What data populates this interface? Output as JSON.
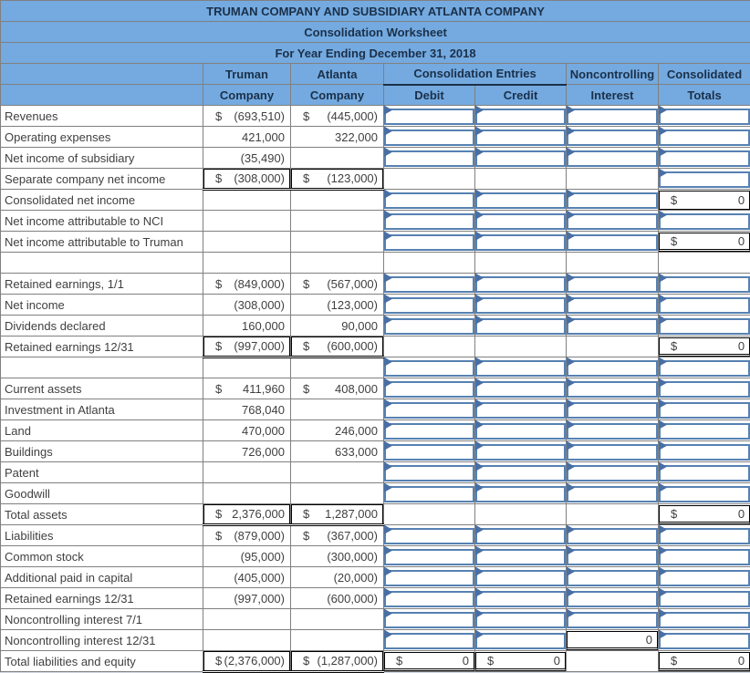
{
  "title": [
    "TRUMAN COMPANY AND SUBSIDIARY ATLANTA COMPANY",
    "Consolidation Worksheet",
    "For Year Ending December 31, 2018"
  ],
  "headers": {
    "truman": [
      "Truman",
      "Company"
    ],
    "atlanta": [
      "Atlanta",
      "Company"
    ],
    "entries": "Consolidation Entries",
    "debit": "Debit",
    "credit": "Credit",
    "nci": [
      "Noncontrolling",
      "Interest"
    ],
    "totals": [
      "Consolidated",
      "Totals"
    ]
  },
  "colors": {
    "header_bg": "#74AAE0",
    "header_text": "#1B3049",
    "grid": "#808080",
    "text": "#3F3F3F",
    "input_border": "#5681B2",
    "input_flag": "#476FA5",
    "calc_border": "#000000",
    "page_bg": "#D4DAE4"
  },
  "rows": [
    {
      "label": "Revenues",
      "truman": {
        "cur": "$",
        "val": "(693,510)"
      },
      "atlanta": {
        "cur": "$",
        "val": "(445,000)"
      },
      "debit": {
        "t": "input"
      },
      "credit": {
        "t": "input"
      },
      "nci": {
        "t": "input"
      },
      "totals": {
        "t": "input"
      }
    },
    {
      "label": "Operating expenses",
      "truman": {
        "val": "421,000"
      },
      "atlanta": {
        "val": "322,000"
      },
      "debit": {
        "t": "input"
      },
      "credit": {
        "t": "input"
      },
      "nci": {
        "t": "input"
      },
      "totals": {
        "t": "input"
      }
    },
    {
      "label": "Net income of subsidiary",
      "truman": {
        "val": "(35,490)"
      },
      "atlanta": null,
      "debit": {
        "t": "input"
      },
      "credit": {
        "t": "input"
      },
      "nci": {
        "t": "input"
      },
      "totals": {
        "t": "input"
      }
    },
    {
      "label": "Separate company net income",
      "box": true,
      "truman": {
        "cur": "$",
        "val": "(308,000)"
      },
      "atlanta": {
        "cur": "$",
        "val": "(123,000)"
      },
      "debit": {
        "t": "plain"
      },
      "credit": {
        "t": "plain"
      },
      "nci": {
        "t": "plain"
      },
      "totals": {
        "t": "input"
      }
    },
    {
      "label": "Consolidated net income",
      "truman": null,
      "atlanta": null,
      "debit": {
        "t": "input"
      },
      "credit": {
        "t": "input"
      },
      "nci": {
        "t": "input"
      },
      "totals": {
        "t": "calc",
        "cur": "$",
        "val": "0",
        "u": "single"
      }
    },
    {
      "label": "Net income attributable to NCI",
      "truman": null,
      "atlanta": null,
      "debit": {
        "t": "input"
      },
      "credit": {
        "t": "input"
      },
      "nci": {
        "t": "input"
      },
      "totals": {
        "t": "input"
      }
    },
    {
      "label": "Net income attributable to Truman",
      "truman": null,
      "atlanta": null,
      "debit": {
        "t": "input"
      },
      "credit": {
        "t": "input"
      },
      "nci": {
        "t": "input"
      },
      "totals": {
        "t": "calc",
        "cur": "$",
        "val": "0",
        "u": "double"
      }
    },
    {
      "label": "",
      "truman": null,
      "atlanta": null,
      "debit": {
        "t": "plain"
      },
      "credit": {
        "t": "plain"
      },
      "nci": {
        "t": "plain"
      },
      "totals": {
        "t": "plain"
      }
    },
    {
      "label": "Retained earnings, 1/1",
      "truman": {
        "cur": "$",
        "val": "(849,000)"
      },
      "atlanta": {
        "cur": "$",
        "val": "(567,000)"
      },
      "debit": {
        "t": "input"
      },
      "credit": {
        "t": "input"
      },
      "nci": {
        "t": "input"
      },
      "totals": {
        "t": "input"
      }
    },
    {
      "label": "Net income",
      "truman": {
        "val": "(308,000)"
      },
      "atlanta": {
        "val": "(123,000)"
      },
      "debit": {
        "t": "input"
      },
      "credit": {
        "t": "input"
      },
      "nci": {
        "t": "input"
      },
      "totals": {
        "t": "input"
      }
    },
    {
      "label": "Dividends declared",
      "truman": {
        "val": "160,000"
      },
      "atlanta": {
        "val": "90,000"
      },
      "debit": {
        "t": "input"
      },
      "credit": {
        "t": "input"
      },
      "nci": {
        "t": "input"
      },
      "totals": {
        "t": "input"
      }
    },
    {
      "label": "Retained earnings 12/31",
      "box": true,
      "truman": {
        "cur": "$",
        "val": "(997,000)"
      },
      "atlanta": {
        "cur": "$",
        "val": "(600,000)"
      },
      "debit": {
        "t": "plain"
      },
      "credit": {
        "t": "plain"
      },
      "nci": {
        "t": "plain"
      },
      "totals": {
        "t": "calc",
        "cur": "$",
        "val": "0",
        "u": "double"
      }
    },
    {
      "label": "",
      "truman": null,
      "atlanta": null,
      "debit": {
        "t": "input"
      },
      "credit": {
        "t": "input"
      },
      "nci": {
        "t": "input"
      },
      "totals": {
        "t": "input"
      }
    },
    {
      "label": "Current assets",
      "truman": {
        "cur": "$",
        "val": "411,960"
      },
      "atlanta": {
        "cur": "$",
        "val": "408,000"
      },
      "debit": {
        "t": "input"
      },
      "credit": {
        "t": "input"
      },
      "nci": {
        "t": "input"
      },
      "totals": {
        "t": "input"
      }
    },
    {
      "label": "Investment in Atlanta",
      "truman": {
        "val": "768,040"
      },
      "atlanta": null,
      "debit": {
        "t": "input"
      },
      "credit": {
        "t": "input"
      },
      "nci": {
        "t": "input"
      },
      "totals": {
        "t": "input"
      }
    },
    {
      "label": "Land",
      "truman": {
        "val": "470,000"
      },
      "atlanta": {
        "val": "246,000"
      },
      "debit": {
        "t": "input"
      },
      "credit": {
        "t": "input"
      },
      "nci": {
        "t": "input"
      },
      "totals": {
        "t": "input"
      }
    },
    {
      "label": "Buildings",
      "truman": {
        "val": "726,000"
      },
      "atlanta": {
        "val": "633,000"
      },
      "debit": {
        "t": "input"
      },
      "credit": {
        "t": "input"
      },
      "nci": {
        "t": "input"
      },
      "totals": {
        "t": "input"
      }
    },
    {
      "label": "Patent",
      "truman": null,
      "atlanta": null,
      "debit": {
        "t": "input"
      },
      "credit": {
        "t": "input"
      },
      "nci": {
        "t": "input"
      },
      "totals": {
        "t": "input"
      }
    },
    {
      "label": "Goodwill",
      "truman": null,
      "atlanta": null,
      "debit": {
        "t": "input"
      },
      "credit": {
        "t": "input"
      },
      "nci": {
        "t": "input"
      },
      "totals": {
        "t": "input"
      }
    },
    {
      "label": "Total assets",
      "box": true,
      "truman": {
        "cur": "$",
        "val": "2,376,000"
      },
      "atlanta": {
        "cur": "$",
        "val": "1,287,000"
      },
      "debit": {
        "t": "plain"
      },
      "credit": {
        "t": "plain"
      },
      "nci": {
        "t": "plain"
      },
      "totals": {
        "t": "calc",
        "cur": "$",
        "val": "0",
        "u": "double"
      }
    },
    {
      "label": "Liabilities",
      "truman": {
        "cur": "$",
        "val": "(879,000)"
      },
      "atlanta": {
        "cur": "$",
        "val": "(367,000)"
      },
      "debit": {
        "t": "input"
      },
      "credit": {
        "t": "input"
      },
      "nci": {
        "t": "input"
      },
      "totals": {
        "t": "input"
      }
    },
    {
      "label": "Common stock",
      "truman": {
        "val": "(95,000)"
      },
      "atlanta": {
        "val": "(300,000)"
      },
      "debit": {
        "t": "input"
      },
      "credit": {
        "t": "input"
      },
      "nci": {
        "t": "input"
      },
      "totals": {
        "t": "input"
      }
    },
    {
      "label": "Additional paid in capital",
      "truman": {
        "val": "(405,000)"
      },
      "atlanta": {
        "val": "(20,000)"
      },
      "debit": {
        "t": "input"
      },
      "credit": {
        "t": "input"
      },
      "nci": {
        "t": "input"
      },
      "totals": {
        "t": "input"
      }
    },
    {
      "label": "Retained earnings 12/31",
      "truman": {
        "val": "(997,000)"
      },
      "atlanta": {
        "val": "(600,000)"
      },
      "debit": {
        "t": "input"
      },
      "credit": {
        "t": "input"
      },
      "nci": {
        "t": "input"
      },
      "totals": {
        "t": "input"
      }
    },
    {
      "label": "Noncontrolling interest 7/1",
      "truman": null,
      "atlanta": null,
      "debit": {
        "t": "input"
      },
      "credit": {
        "t": "input"
      },
      "nci": {
        "t": "input"
      },
      "totals": {
        "t": "input"
      }
    },
    {
      "label": "Noncontrolling interest 12/31",
      "truman": null,
      "atlanta": null,
      "debit": {
        "t": "input"
      },
      "credit": {
        "t": "input"
      },
      "nci": {
        "t": "calc",
        "cur": "",
        "val": "0",
        "u": "double"
      },
      "totals": {
        "t": "input"
      }
    },
    {
      "label": "Total liabilities and equity",
      "box": true,
      "truman": {
        "cur": "$",
        "val": "(2,376,000)"
      },
      "atlanta": {
        "cur": "$",
        "val": "(1,287,000)"
      },
      "debit": {
        "t": "calc",
        "cur": "$",
        "val": "0",
        "u": "double"
      },
      "credit": {
        "t": "calc",
        "cur": "$",
        "val": "0",
        "u": "double"
      },
      "nci": {
        "t": "plain"
      },
      "totals": {
        "t": "calc",
        "cur": "$",
        "val": "0",
        "u": "double"
      }
    }
  ]
}
